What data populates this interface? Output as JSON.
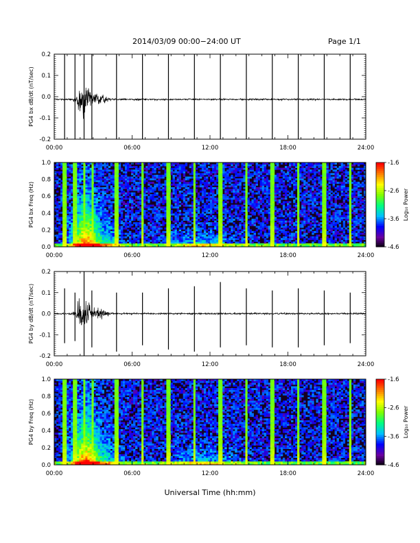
{
  "header": {
    "title": "2014/03/09   00:00−24:00 UT",
    "page": "Page 1/1"
  },
  "footer": {
    "xlabel": "Universal Time (hh:mm)"
  },
  "colors": {
    "trace": "#000000",
    "spectrogram_background": "#160020",
    "colormap": [
      "#000000",
      "#6a00a0",
      "#0000ff",
      "#00c0ff",
      "#00ff80",
      "#80ff00",
      "#ffff00",
      "#ff8000",
      "#ff0000"
    ]
  },
  "chart_data": [
    {
      "type": "line",
      "id": "bx-dbdt",
      "ylabel": "PG4 bx dB/dt (nT/sec)",
      "xlim": [
        0,
        24
      ],
      "ylim": [
        -0.2,
        0.2
      ],
      "x_ticks": [
        "00:00",
        "06:00",
        "12:00",
        "18:00",
        "24:00"
      ],
      "y_ticks": [
        "-0.2",
        "-0.1",
        "0.0",
        "0.1",
        "0.2"
      ],
      "baseline": -0.013,
      "storm_peak_hour": 2.3,
      "spike_hours": [
        0.8,
        1.6,
        2.3,
        2.9,
        4.8,
        6.8,
        8.8,
        10.8,
        12.8,
        14.8,
        16.8,
        18.8,
        20.8,
        22.8
      ],
      "spike_positive": [
        0.2,
        0.2,
        0.2,
        0.2,
        0.2,
        0.2,
        0.2,
        0.2,
        0.2,
        0.2,
        0.2,
        0.2,
        0.2,
        0.2
      ],
      "spike_negative": [
        -0.2,
        -0.2,
        -0.2,
        -0.2,
        -0.2,
        -0.2,
        -0.2,
        -0.2,
        -0.2,
        -0.2,
        -0.2,
        -0.2,
        -0.2,
        -0.2
      ]
    },
    {
      "type": "heatmap",
      "id": "bx-spectrogram",
      "ylabel": "PG4 bx Freq (Hz)",
      "xlim": [
        0,
        24
      ],
      "ylim": [
        0,
        1.0
      ],
      "x_ticks": [
        "00:00",
        "06:00",
        "12:00",
        "18:00",
        "24:00"
      ],
      "y_ticks": [
        "0.0",
        "0.2",
        "0.4",
        "0.6",
        "0.8",
        "1.0"
      ],
      "colorbar": {
        "label": "Log₁₀ Power",
        "range": [
          -4.6,
          -1.6
        ],
        "ticks": [
          "-1.6",
          "-2.6",
          "-3.6",
          "-4.6"
        ]
      },
      "spike_hours": [
        0.8,
        1.6,
        2.3,
        2.9,
        4.8,
        6.8,
        8.8,
        10.8,
        12.8,
        14.8,
        16.8,
        18.8,
        20.8,
        22.8
      ]
    },
    {
      "type": "line",
      "id": "by-dbdt",
      "ylabel": "PG4 by dB/dt (nT/sec)",
      "xlim": [
        0,
        24
      ],
      "ylim": [
        -0.2,
        0.2
      ],
      "x_ticks": [
        "00:00",
        "06:00",
        "12:00",
        "18:00",
        "24:00"
      ],
      "y_ticks": [
        "-0.2",
        "-0.1",
        "0.0",
        "0.1",
        "0.2"
      ],
      "baseline": 0.0,
      "storm_peak_hour": 2.3,
      "spike_hours": [
        0.8,
        1.6,
        2.3,
        2.9,
        4.8,
        6.8,
        8.8,
        10.8,
        12.8,
        14.8,
        16.8,
        18.8,
        20.8,
        22.8
      ],
      "spike_positive": [
        0.12,
        0.1,
        0.2,
        0.11,
        0.1,
        0.1,
        0.12,
        0.13,
        0.15,
        0.12,
        0.11,
        0.12,
        0.11,
        0.1
      ],
      "spike_negative": [
        -0.14,
        -0.13,
        -0.2,
        -0.16,
        -0.18,
        -0.15,
        -0.17,
        -0.18,
        -0.16,
        -0.15,
        -0.16,
        -0.16,
        -0.15,
        -0.14
      ]
    },
    {
      "type": "heatmap",
      "id": "by-spectrogram",
      "ylabel": "PG4 by Freq (Hz)",
      "xlim": [
        0,
        24
      ],
      "ylim": [
        0,
        1.0
      ],
      "x_ticks": [
        "00:00",
        "06:00",
        "12:00",
        "18:00",
        "24:00"
      ],
      "y_ticks": [
        "0.0",
        "0.2",
        "0.4",
        "0.6",
        "0.8",
        "1.0"
      ],
      "colorbar": {
        "label": "Log₁₀ Power",
        "range": [
          -4.6,
          -1.6
        ],
        "ticks": [
          "-1.6",
          "-2.6",
          "-3.6",
          "-4.6"
        ]
      },
      "spike_hours": [
        0.8,
        1.6,
        2.3,
        2.9,
        4.8,
        6.8,
        8.8,
        10.8,
        12.8,
        14.8,
        16.8,
        18.8,
        20.8,
        22.8
      ]
    }
  ]
}
